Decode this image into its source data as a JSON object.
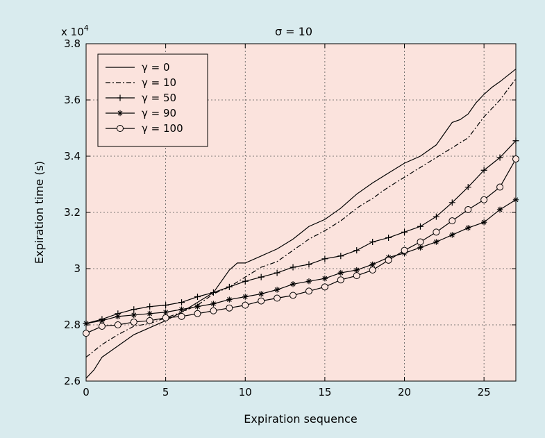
{
  "chart_data": {
    "type": "line",
    "title": "σ = 10",
    "xlabel": "Expiration sequence",
    "ylabel": "Expiration time (s)",
    "y_multiplier_label": "x 10",
    "y_multiplier_exponent": "4",
    "xlim": [
      0,
      27
    ],
    "ylim": [
      2.6,
      3.8
    ],
    "xticks": [
      0,
      5,
      10,
      15,
      20,
      25
    ],
    "xtick_labels": [
      "0",
      "5",
      "10",
      "15",
      "20",
      "25"
    ],
    "yticks": [
      2.6,
      2.8,
      3.0,
      3.2,
      3.4,
      3.6,
      3.8
    ],
    "ytick_labels": [
      "2.6",
      "2.8",
      "3",
      "3.2",
      "3.4",
      "3.6",
      "3.8"
    ],
    "grid": true,
    "legend_position": "top-left",
    "plot_background": "#fbe3dd",
    "figure_background": "#d9ebee",
    "legend_background": "#fbe3dd",
    "line_color": "#000000",
    "series": [
      {
        "name": "γ = 0",
        "line_style": "solid",
        "marker": "none",
        "x": [
          0,
          0.5,
          1,
          2,
          3,
          4,
          5,
          6,
          7,
          8,
          9,
          9.5,
          10,
          11,
          12,
          13,
          14,
          15,
          16,
          17,
          18,
          19,
          20,
          21,
          22,
          23,
          23.5,
          24,
          24.5,
          25,
          25.5,
          26,
          27
        ],
        "y": [
          2.61,
          2.64,
          2.685,
          2.725,
          2.765,
          2.79,
          2.815,
          2.845,
          2.88,
          2.915,
          2.995,
          3.02,
          3.02,
          3.045,
          3.07,
          3.105,
          3.15,
          3.175,
          3.215,
          3.265,
          3.305,
          3.34,
          3.375,
          3.4,
          3.44,
          3.52,
          3.53,
          3.55,
          3.59,
          3.62,
          3.645,
          3.665,
          3.71
        ]
      },
      {
        "name": "γ = 10",
        "line_style": "dashdot",
        "marker": "none",
        "x": [
          0,
          1,
          2,
          3,
          4,
          5,
          6,
          7,
          8,
          9,
          10,
          11,
          12,
          13,
          14,
          15,
          16,
          17,
          18,
          19,
          20,
          21,
          22,
          23,
          24,
          25,
          26,
          27
        ],
        "y": [
          2.685,
          2.73,
          2.765,
          2.795,
          2.805,
          2.825,
          2.845,
          2.87,
          2.91,
          2.935,
          2.97,
          3.005,
          3.025,
          3.065,
          3.105,
          3.135,
          3.17,
          3.215,
          3.25,
          3.29,
          3.325,
          3.36,
          3.395,
          3.43,
          3.465,
          3.54,
          3.6,
          3.675
        ]
      },
      {
        "name": "γ = 50",
        "line_style": "solid",
        "marker": "plus",
        "x": [
          0,
          1,
          2,
          3,
          4,
          5,
          6,
          7,
          8,
          9,
          10,
          11,
          12,
          13,
          14,
          15,
          16,
          17,
          18,
          19,
          20,
          21,
          22,
          23,
          24,
          25,
          26,
          27
        ],
        "y": [
          2.805,
          2.82,
          2.84,
          2.855,
          2.865,
          2.87,
          2.88,
          2.9,
          2.915,
          2.935,
          2.955,
          2.97,
          2.985,
          3.005,
          3.015,
          3.035,
          3.045,
          3.065,
          3.095,
          3.11,
          3.13,
          3.15,
          3.185,
          3.235,
          3.29,
          3.35,
          3.395,
          3.455
        ]
      },
      {
        "name": "γ = 90",
        "line_style": "solid",
        "marker": "asterisk",
        "x": [
          0,
          1,
          2,
          3,
          4,
          5,
          6,
          7,
          8,
          9,
          10,
          11,
          12,
          13,
          14,
          15,
          16,
          17,
          18,
          19,
          20,
          21,
          22,
          23,
          24,
          25,
          26,
          27
        ],
        "y": [
          2.805,
          2.815,
          2.83,
          2.835,
          2.84,
          2.845,
          2.855,
          2.865,
          2.875,
          2.89,
          2.9,
          2.91,
          2.925,
          2.945,
          2.955,
          2.965,
          2.985,
          2.995,
          3.015,
          3.04,
          3.055,
          3.075,
          3.095,
          3.12,
          3.145,
          3.165,
          3.21,
          3.245
        ]
      },
      {
        "name": "γ = 100",
        "line_style": "solid",
        "marker": "circle",
        "x": [
          0,
          1,
          2,
          3,
          4,
          5,
          6,
          7,
          8,
          9,
          10,
          11,
          12,
          13,
          14,
          15,
          16,
          17,
          18,
          19,
          20,
          21,
          22,
          23,
          24,
          25,
          26,
          27
        ],
        "y": [
          2.77,
          2.795,
          2.8,
          2.81,
          2.815,
          2.825,
          2.83,
          2.84,
          2.85,
          2.86,
          2.87,
          2.885,
          2.895,
          2.905,
          2.92,
          2.935,
          2.96,
          2.975,
          2.995,
          3.03,
          3.065,
          3.095,
          3.13,
          3.17,
          3.21,
          3.245,
          3.29,
          3.39
        ]
      }
    ]
  }
}
